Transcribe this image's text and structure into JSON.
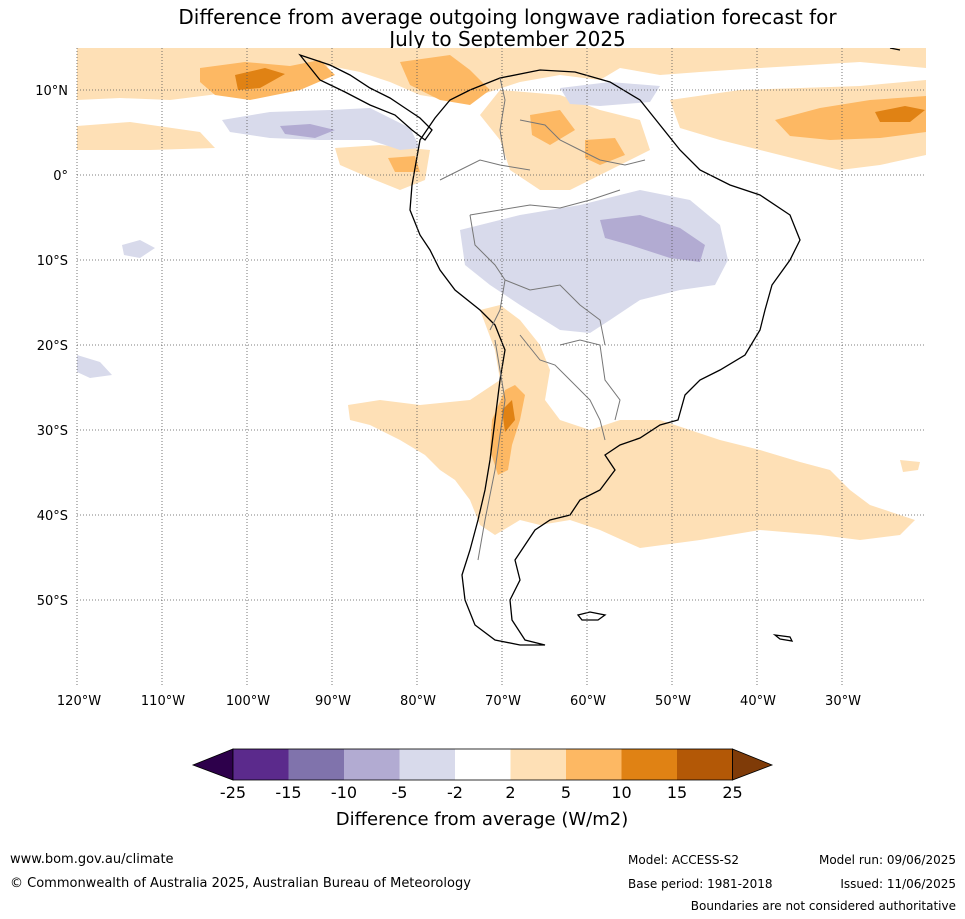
{
  "title_line1": "Difference from average outgoing longwave radiation forecast for",
  "title_line2": "July to September 2025",
  "lat_labels": [
    "10°N",
    "0°",
    "10°S",
    "20°S",
    "30°S",
    "40°S",
    "50°S"
  ],
  "lon_labels": [
    "120°W",
    "110°W",
    "100°W",
    "90°W",
    "80°W",
    "70°W",
    "60°W",
    "50°W",
    "40°W",
    "30°W"
  ],
  "colorbar": {
    "tick_labels": [
      "-25",
      "-15",
      "-10",
      "-5",
      "-2",
      "2",
      "5",
      "10",
      "15",
      "25"
    ],
    "colors": [
      "#2d004b",
      "#5b2a8c",
      "#8073ac",
      "#b2abd2",
      "#d8daeb",
      "#ffffff",
      "#fee0b6",
      "#fdb863",
      "#e08214",
      "#b35806",
      "#7f3b08"
    ],
    "label": "Difference from average (W/m2)"
  },
  "footer": {
    "website": "www.bom.gov.au/climate",
    "copyright": "© Commonwealth of Australia 2025, Australian Bureau of Meteorology",
    "model": "Model: ACCESS-S2",
    "base_period": "Base period: 1981-2018",
    "model_run": "Model run: 09/06/2025",
    "issued": "Issued: 11/06/2025",
    "disclaimer": "Boundaries are not considered authoritative"
  }
}
